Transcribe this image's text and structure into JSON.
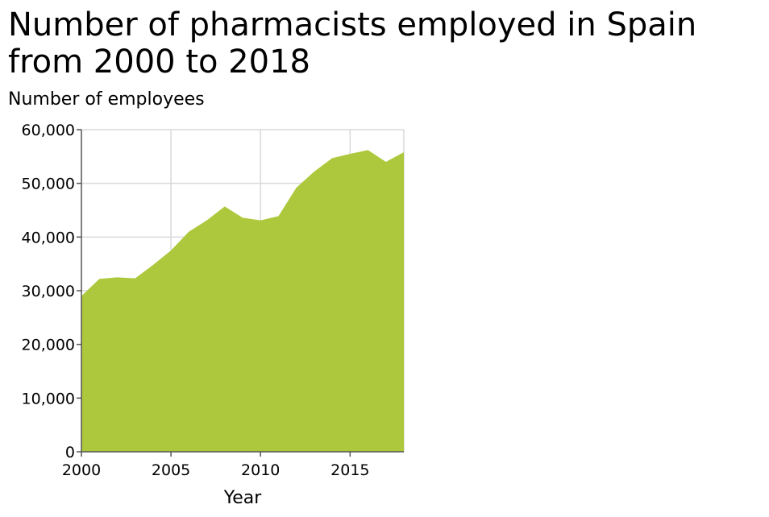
{
  "chart_data": {
    "type": "area",
    "title": "Number of pharmacists employed in Spain from 2000 to 2018",
    "xlabel": "Year",
    "ylabel": "Number of employees",
    "xlim": [
      2000,
      2018
    ],
    "ylim": [
      0,
      60000
    ],
    "x_ticks": [
      2000,
      2005,
      2010,
      2015
    ],
    "x_tick_labels": [
      "2000",
      "2005",
      "2010",
      "2015"
    ],
    "y_ticks": [
      0,
      10000,
      20000,
      30000,
      40000,
      50000,
      60000
    ],
    "y_tick_labels": [
      "0",
      "10,000",
      "20,000",
      "30,000",
      "40,000",
      "50,000",
      "60,000"
    ],
    "grid": true,
    "series": [
      {
        "color": "#adc83c",
        "x": [
          2000,
          2001,
          2002,
          2003,
          2004,
          2005,
          2006,
          2007,
          2008,
          2009,
          2010,
          2011,
          2012,
          2013,
          2014,
          2015,
          2016,
          2017,
          2018
        ],
        "values": [
          29000,
          32200,
          32500,
          32300,
          34800,
          37500,
          41000,
          43100,
          45700,
          43600,
          43100,
          43900,
          49200,
          52200,
          54700,
          55500,
          56200,
          54000,
          55800
        ]
      }
    ]
  }
}
